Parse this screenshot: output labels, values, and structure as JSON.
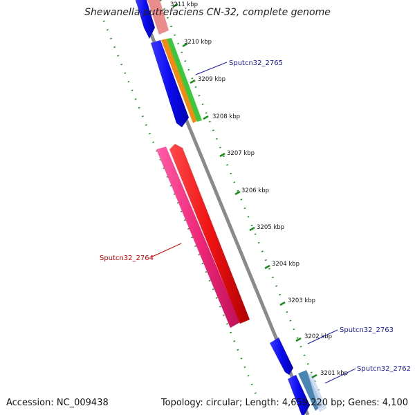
{
  "title": "Shewanella putrefaciens CN-32, complete genome",
  "footer": {
    "accession": "Accession: NC_009438",
    "summary": "Topology: circular; Length: 4,659,220 bp; Genes: 4,100"
  },
  "ticks": [
    "3211 kbp",
    "3210 kbp",
    "3209 kbp",
    "3208 kbp",
    "3207 kbp",
    "3206 kbp",
    "3205 kbp",
    "3204 kbp",
    "3203 kbp",
    "3202 kbp",
    "3201 kbp"
  ],
  "gene_labels": [
    {
      "name": "Sputcn32_2765",
      "color": "#1a1aa6"
    },
    {
      "name": "Sputcn32_2764",
      "color": "#cc0000"
    },
    {
      "name": "Sputcn32_2763",
      "color": "#1a1aa6"
    },
    {
      "name": "Sputcn32_2762",
      "color": "#1a1aa6"
    }
  ],
  "colors": {
    "backbone": "#8a8a8a",
    "blue_cds": "#0b0bf0",
    "pink_cds": "#f0287a",
    "red_cds": "#f01414",
    "salmon_cds": "#e88080",
    "orange_cds": "#f08c14",
    "green_cds": "#3cc83c",
    "steel_cds": "#4a86b4",
    "dotted_guide": "#1a8a1a"
  }
}
